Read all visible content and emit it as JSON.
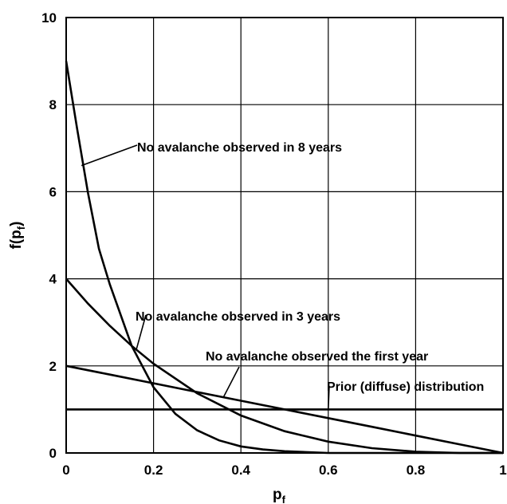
{
  "chart_data": {
    "type": "line",
    "title": "",
    "xlabel": "p",
    "xlabel_sub": "f",
    "ylabel": "f(p",
    "ylabel_sub": "f",
    "ylabel_end": ")",
    "xlim": [
      0,
      1
    ],
    "ylim": [
      0,
      10
    ],
    "xticks": [
      "0",
      "0.2",
      "0.4",
      "0.6",
      "0.8",
      "1"
    ],
    "yticks": [
      "0",
      "2",
      "4",
      "6",
      "8",
      "10"
    ],
    "grid": true,
    "series": [
      {
        "name": "Prior (diffuse) distribution",
        "x": [
          0,
          0.1,
          0.2,
          0.3,
          0.4,
          0.5,
          0.6,
          0.7,
          0.8,
          0.9,
          1.0
        ],
        "y": [
          1,
          1,
          1,
          1,
          1,
          1,
          1,
          1,
          1,
          1,
          1
        ]
      },
      {
        "name": "No avalanche observed the first year",
        "x": [
          0,
          0.1,
          0.2,
          0.3,
          0.4,
          0.5,
          0.6,
          0.7,
          0.8,
          0.9,
          1.0
        ],
        "y": [
          2.0,
          1.8,
          1.6,
          1.4,
          1.2,
          1.0,
          0.8,
          0.6,
          0.4,
          0.2,
          0.0
        ]
      },
      {
        "name": "No avalanche observed in 3 years",
        "x": [
          0,
          0.05,
          0.1,
          0.15,
          0.2,
          0.3,
          0.4,
          0.5,
          0.6,
          0.7,
          0.8,
          0.9,
          1.0
        ],
        "y": [
          4.0,
          3.43,
          2.92,
          2.46,
          2.05,
          1.37,
          0.86,
          0.5,
          0.26,
          0.11,
          0.03,
          0.0,
          0.0
        ]
      },
      {
        "name": "No avalanche observed in 8 years",
        "x": [
          0,
          0.025,
          0.05,
          0.075,
          0.1,
          0.15,
          0.2,
          0.25,
          0.3,
          0.35,
          0.4,
          0.45,
          0.5,
          0.6,
          0.7,
          0.8,
          1.0
        ],
        "y": [
          9.0,
          7.45,
          5.97,
          4.69,
          3.87,
          2.46,
          1.51,
          0.9,
          0.52,
          0.29,
          0.15,
          0.08,
          0.04,
          0.0,
          0.0,
          0.0,
          0.0
        ]
      }
    ],
    "annotations": [
      {
        "text": "No avalanche observed in 8 years",
        "series": 3
      },
      {
        "text": "No avalanche observed in 3 years",
        "series": 2
      },
      {
        "text": "No avalanche observed the first year",
        "series": 1
      },
      {
        "text": "Prior (diffuse) distribution",
        "series": 0
      }
    ]
  }
}
